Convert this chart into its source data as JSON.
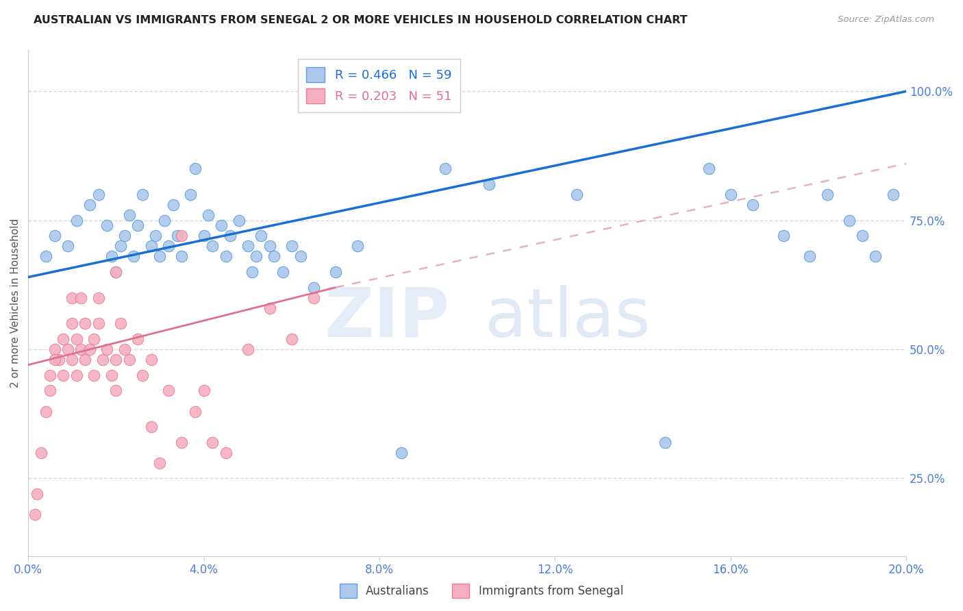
{
  "title": "AUSTRALIAN VS IMMIGRANTS FROM SENEGAL 2 OR MORE VEHICLES IN HOUSEHOLD CORRELATION CHART",
  "source": "Source: ZipAtlas.com",
  "xlabel_ticks": [
    "0.0%",
    "4.0%",
    "8.0%",
    "12.0%",
    "16.0%",
    "20.0%"
  ],
  "xlabel_values": [
    0.0,
    4.0,
    8.0,
    12.0,
    16.0,
    20.0
  ],
  "ylabel": "2 or more Vehicles in Household",
  "ylabel_ticks": [
    "25.0%",
    "50.0%",
    "75.0%",
    "100.0%"
  ],
  "ylabel_values": [
    25.0,
    50.0,
    75.0,
    100.0
  ],
  "ylim_min": 10,
  "ylim_max": 108,
  "xlim_min": 0,
  "xlim_max": 20,
  "R_blue": 0.466,
  "N_blue": 59,
  "R_pink": 0.203,
  "N_pink": 51,
  "blue_color": "#adc8ec",
  "pink_color": "#f5afc0",
  "blue_edge_color": "#5a9de0",
  "pink_edge_color": "#e8809a",
  "blue_line_color": "#1a6fd4",
  "pink_line_color": "#e07090",
  "pink_dash_color": "#e8b0be",
  "title_color": "#222222",
  "tick_color": "#4a7fd4",
  "grid_color": "#d8d8d8",
  "blue_line_x0": 0.0,
  "blue_line_y0": 64.0,
  "blue_line_x1": 20.0,
  "blue_line_y1": 100.0,
  "pink_solid_x0": 0.0,
  "pink_solid_y0": 47.0,
  "pink_solid_x1": 7.0,
  "pink_solid_y1": 62.0,
  "pink_dash_x0": 7.0,
  "pink_dash_y0": 62.0,
  "pink_dash_x1": 20.0,
  "pink_dash_y1": 86.0,
  "blue_scatter_x": [
    0.4,
    0.6,
    0.9,
    1.1,
    1.4,
    1.6,
    1.8,
    1.9,
    2.0,
    2.1,
    2.2,
    2.3,
    2.4,
    2.5,
    2.6,
    2.8,
    2.9,
    3.0,
    3.1,
    3.2,
    3.3,
    3.4,
    3.5,
    3.7,
    3.8,
    4.0,
    4.1,
    4.2,
    4.4,
    4.5,
    4.6,
    4.8,
    5.0,
    5.1,
    5.2,
    5.3,
    5.5,
    5.6,
    5.8,
    6.0,
    6.2,
    6.5,
    7.0,
    7.5,
    8.5,
    9.5,
    10.5,
    12.5,
    14.5,
    15.5,
    16.0,
    16.5,
    17.2,
    17.8,
    18.2,
    18.7,
    19.0,
    19.3,
    19.7
  ],
  "blue_scatter_y": [
    68,
    72,
    70,
    75,
    78,
    80,
    74,
    68,
    65,
    70,
    72,
    76,
    68,
    74,
    80,
    70,
    72,
    68,
    75,
    70,
    78,
    72,
    68,
    80,
    85,
    72,
    76,
    70,
    74,
    68,
    72,
    75,
    70,
    65,
    68,
    72,
    70,
    68,
    65,
    70,
    68,
    62,
    65,
    70,
    30,
    85,
    82,
    80,
    32,
    85,
    80,
    78,
    72,
    68,
    80,
    75,
    72,
    68,
    80
  ],
  "pink_scatter_x": [
    0.15,
    0.2,
    0.3,
    0.4,
    0.5,
    0.5,
    0.6,
    0.7,
    0.8,
    0.8,
    0.9,
    1.0,
    1.0,
    1.0,
    1.1,
    1.1,
    1.2,
    1.3,
    1.3,
    1.4,
    1.5,
    1.5,
    1.6,
    1.7,
    1.8,
    1.9,
    2.0,
    2.0,
    2.1,
    2.2,
    2.3,
    2.5,
    2.6,
    2.8,
    3.0,
    3.2,
    3.5,
    3.8,
    4.0,
    4.5,
    5.0,
    5.5,
    6.0,
    6.5,
    2.0,
    2.8,
    3.5,
    4.2,
    1.6,
    1.2,
    0.6
  ],
  "pink_scatter_y": [
    18,
    22,
    30,
    38,
    45,
    42,
    50,
    48,
    45,
    52,
    50,
    48,
    55,
    60,
    45,
    52,
    50,
    48,
    55,
    50,
    52,
    45,
    60,
    48,
    50,
    45,
    48,
    42,
    55,
    50,
    48,
    52,
    45,
    35,
    28,
    42,
    32,
    38,
    42,
    30,
    50,
    58,
    52,
    60,
    65,
    48,
    72,
    32,
    55,
    60,
    48
  ]
}
